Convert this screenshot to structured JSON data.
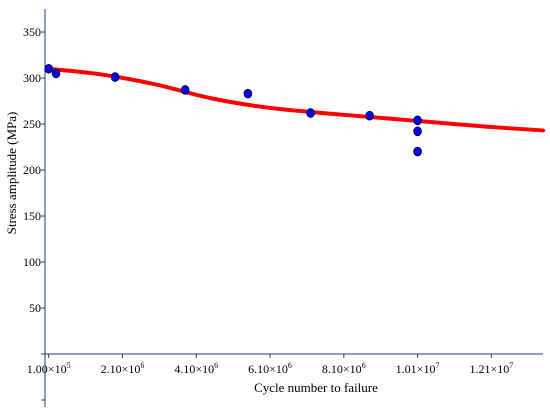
{
  "chart_data": {
    "type": "scatter",
    "xlabel": "Cycle number to failure",
    "ylabel": "Stress amplitude (MPa)",
    "xlim": [
      0,
      13500000
    ],
    "ylim": [
      -55,
      375
    ],
    "y_ticks": [
      {
        "value": 50,
        "label": "50"
      },
      {
        "value": 100,
        "label": "100"
      },
      {
        "value": 150,
        "label": "150"
      },
      {
        "value": 200,
        "label": "200"
      },
      {
        "value": 250,
        "label": "250"
      },
      {
        "value": 300,
        "label": "300"
      },
      {
        "value": 350,
        "label": "350"
      }
    ],
    "x_ticks": [
      {
        "value": 100000,
        "mantissa": "1.00",
        "exponent": "5"
      },
      {
        "value": 2100000,
        "mantissa": "2.10",
        "exponent": "6"
      },
      {
        "value": 4100000,
        "mantissa": "4.10",
        "exponent": "6"
      },
      {
        "value": 6100000,
        "mantissa": "6.10",
        "exponent": "6"
      },
      {
        "value": 8100000,
        "mantissa": "8.10",
        "exponent": "6"
      },
      {
        "value": 10100000,
        "mantissa": "1.01",
        "exponent": "7"
      },
      {
        "value": 12100000,
        "mantissa": "1.21",
        "exponent": "7"
      }
    ],
    "grid": false,
    "colors": {
      "points": "#0a0ad8",
      "fit_curve": "#ff0000",
      "axes": "#1f3a8a"
    },
    "points": [
      {
        "x": 100000,
        "y": 310
      },
      {
        "x": 300000,
        "y": 305
      },
      {
        "x": 1900000,
        "y": 301
      },
      {
        "x": 3800000,
        "y": 287
      },
      {
        "x": 5500000,
        "y": 283
      },
      {
        "x": 7200000,
        "y": 262
      },
      {
        "x": 8800000,
        "y": 259
      },
      {
        "x": 10100000,
        "y": 254
      },
      {
        "x": 10100000,
        "y": 242
      },
      {
        "x": 10100000,
        "y": 220
      }
    ],
    "fit_curve": [
      {
        "x": 100000,
        "y": 310
      },
      {
        "x": 1500000,
        "y": 304
      },
      {
        "x": 3000000,
        "y": 293
      },
      {
        "x": 4500000,
        "y": 278
      },
      {
        "x": 6000000,
        "y": 268
      },
      {
        "x": 7500000,
        "y": 262
      },
      {
        "x": 9000000,
        "y": 257
      },
      {
        "x": 10500000,
        "y": 252
      },
      {
        "x": 12000000,
        "y": 247
      },
      {
        "x": 13500000,
        "y": 243
      }
    ]
  }
}
